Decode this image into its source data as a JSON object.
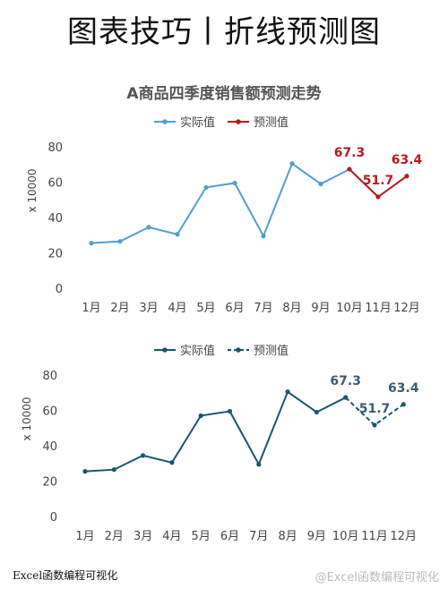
{
  "page": {
    "title": "图表技巧丨折线预测图",
    "footer_left": "Excel函数编程可视化",
    "footer_right": "@Excel函数编程可视化"
  },
  "chart_data": [
    {
      "type": "line",
      "title": "A商品四季度销售额预测走势",
      "ylabel": "x 10000",
      "ylim": [
        0,
        80
      ],
      "yticks": [
        0,
        20,
        40,
        60,
        80
      ],
      "categories": [
        "1月",
        "2月",
        "3月",
        "4月",
        "5月",
        "6月",
        "7月",
        "8月",
        "9月",
        "10月",
        "11月",
        "12月"
      ],
      "legend_position": "top-center",
      "grid": false,
      "series": [
        {
          "name": "实际值",
          "color": "#4f9fd0",
          "style": "solid",
          "values": [
            25.5,
            26.5,
            34.5,
            30.5,
            57,
            59.5,
            29.5,
            70.5,
            59,
            67.3,
            null,
            null
          ]
        },
        {
          "name": "预测值",
          "color": "#b51c1c",
          "style": "solid",
          "values": [
            null,
            null,
            null,
            null,
            null,
            null,
            null,
            null,
            null,
            67.3,
            51.7,
            63.4
          ]
        }
      ],
      "data_labels": [
        {
          "index": 9,
          "text": "67.3"
        },
        {
          "index": 10,
          "text": "51.7"
        },
        {
          "index": 11,
          "text": "63.4"
        }
      ]
    },
    {
      "type": "line",
      "title": "",
      "ylabel": "x 10000",
      "ylim": [
        0,
        80
      ],
      "yticks": [
        0,
        20,
        40,
        60,
        80
      ],
      "categories": [
        "1月",
        "2月",
        "3月",
        "4月",
        "5月",
        "6月",
        "7月",
        "8月",
        "9月",
        "10月",
        "11月",
        "12月"
      ],
      "legend_position": "top-center",
      "grid": false,
      "series": [
        {
          "name": "实际值",
          "color": "#1a5670",
          "style": "solid",
          "values": [
            25.5,
            26.5,
            34.5,
            30.5,
            57,
            59.5,
            29.5,
            70.5,
            59,
            67.3,
            null,
            null
          ]
        },
        {
          "name": "预测值",
          "color": "#1a5670",
          "style": "dashed",
          "values": [
            null,
            null,
            null,
            null,
            null,
            null,
            null,
            null,
            null,
            67.3,
            51.7,
            63.4
          ]
        }
      ],
      "data_labels": [
        {
          "index": 9,
          "text": "67.3"
        },
        {
          "index": 10,
          "text": "51.7"
        },
        {
          "index": 11,
          "text": "63.4"
        }
      ]
    }
  ]
}
